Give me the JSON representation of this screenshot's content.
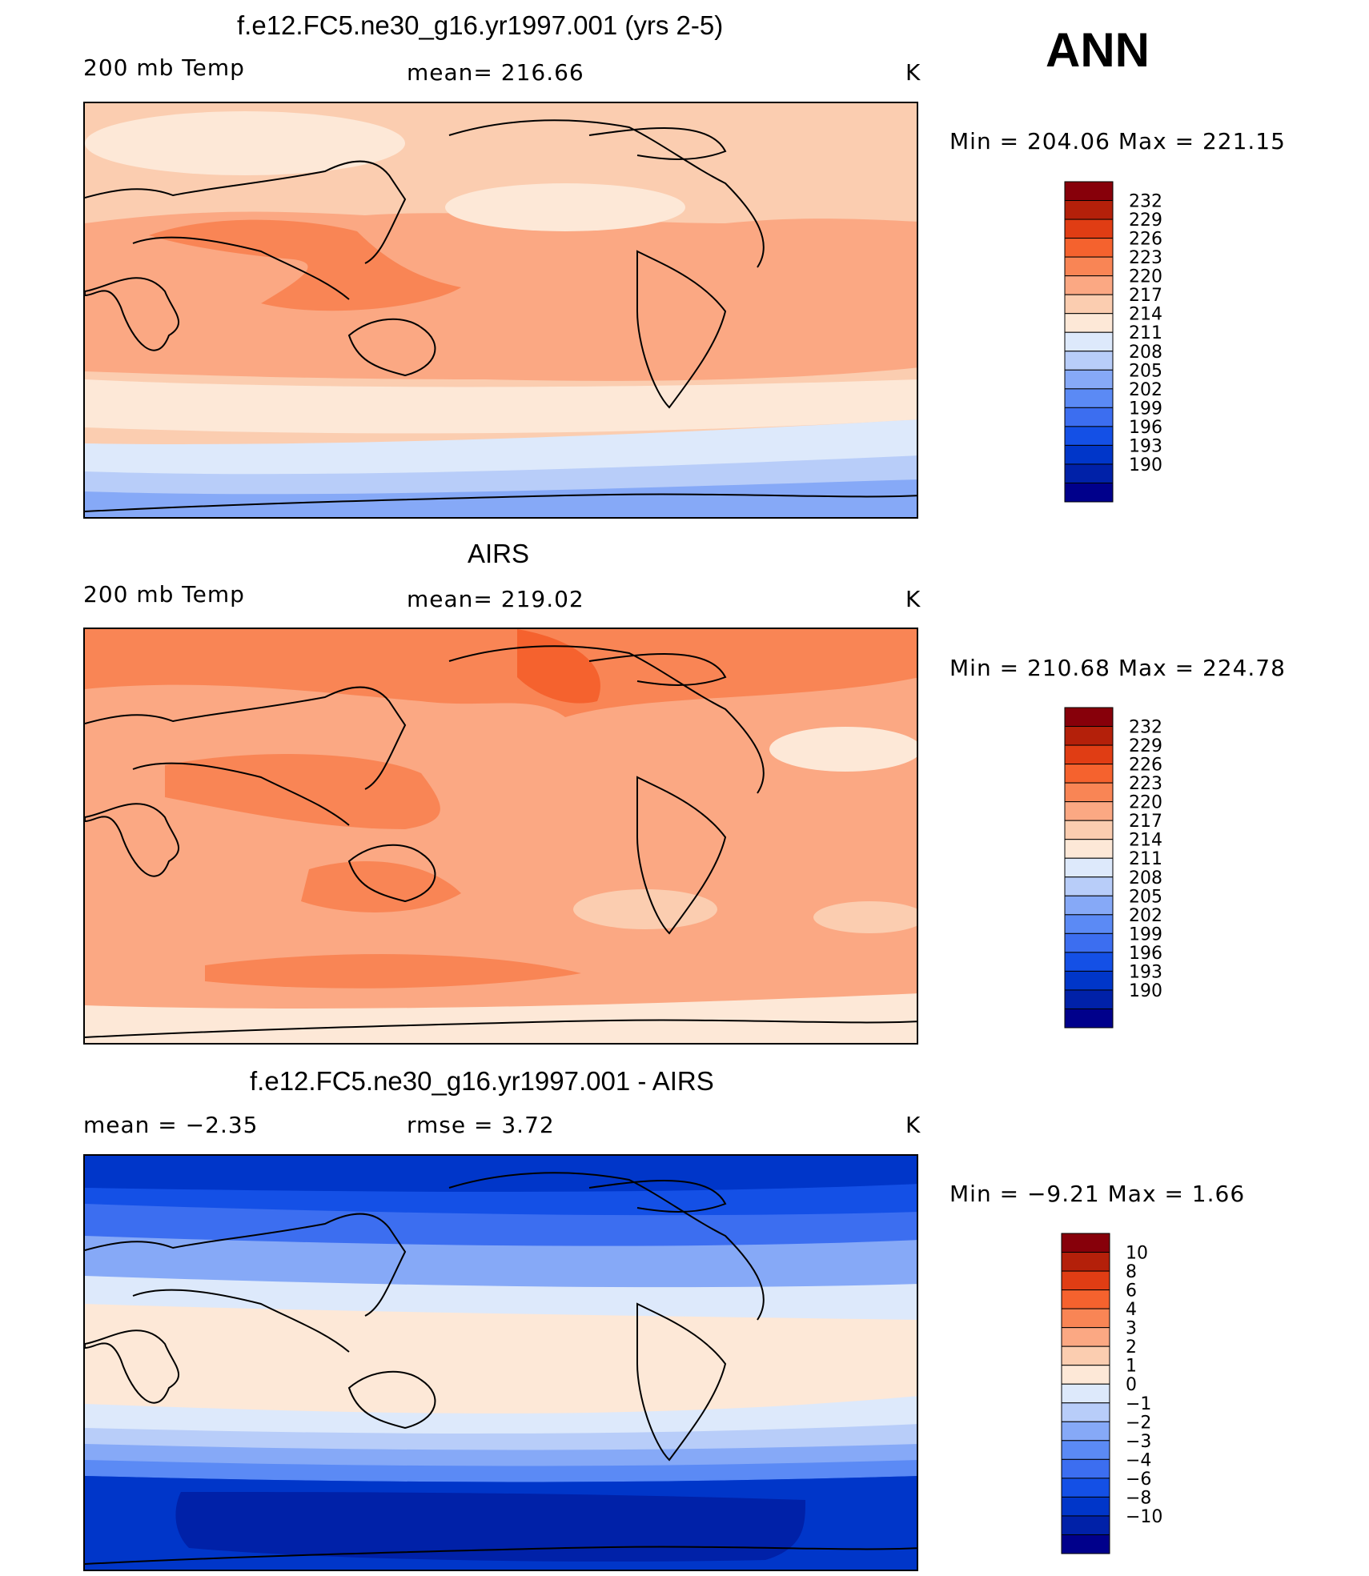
{
  "season": "ANN",
  "colors": {
    "temp_scale": [
      "#00008b",
      "#0021a8",
      "#0036c9",
      "#1450e6",
      "#3c6ef0",
      "#5b8af5",
      "#86a9f7",
      "#b8cdf9",
      "#dde9fb",
      "#fde8d7",
      "#fbcdb0",
      "#fba883",
      "#f98555",
      "#f5622e",
      "#e03d14",
      "#b4200a",
      "#87000a"
    ],
    "diff_scale": [
      "#00008b",
      "#0021a8",
      "#0036c9",
      "#1450e6",
      "#3c6ef0",
      "#5b8af5",
      "#86a9f7",
      "#b8cdf9",
      "#dde9fb",
      "#fde8d7",
      "#fbcdb0",
      "#fba883",
      "#f98555",
      "#f5622e",
      "#e03d14",
      "#b4200a",
      "#87000a"
    ]
  },
  "panels": [
    {
      "title": "f.e12.FC5.ne30_g16.yr1997.001 (yrs 2-5)",
      "left_label": "200 mb Temp",
      "center_label": "mean=  216.66",
      "units": "K",
      "minmax": "Min  =  204.06  Max  =  221.15",
      "colorbar_labels": [
        "232",
        "229",
        "226",
        "223",
        "220",
        "217",
        "214",
        "211",
        "208",
        "205",
        "202",
        "199",
        "196",
        "193",
        "190"
      ],
      "map": {
        "bands": [
          {
            "level": "217",
            "color": "#fbcdb0"
          },
          {
            "level": "220",
            "color": "#fba883"
          },
          {
            "level": "211",
            "color": "#fde8d7"
          },
          {
            "level": "208",
            "color": "#dde9fb"
          },
          {
            "level": "205",
            "color": "#b8cdf9"
          },
          {
            "level": "202",
            "color": "#86a9f7"
          }
        ]
      }
    },
    {
      "title": "AIRS",
      "left_label": "200 mb Temp",
      "center_label": "mean=  219.02",
      "units": "K",
      "minmax": "Min  =  210.68  Max  =  224.78",
      "colorbar_labels": [
        "232",
        "229",
        "226",
        "223",
        "220",
        "217",
        "214",
        "211",
        "208",
        "205",
        "202",
        "199",
        "196",
        "193",
        "190"
      ],
      "map": {
        "bands": [
          {
            "level": "223",
            "color": "#f98555"
          },
          {
            "level": "220",
            "color": "#fba883"
          },
          {
            "level": "217",
            "color": "#fbcdb0"
          },
          {
            "level": "211",
            "color": "#fde8d7"
          }
        ]
      }
    },
    {
      "title": "f.e12.FC5.ne30_g16.yr1997.001 - AIRS",
      "left_label": "mean  =    −2.35",
      "center_label": "rmse  =     3.72",
      "units": "K",
      "minmax": "Min  =    −9.21  Max  =      1.66",
      "colorbar_labels": [
        "10",
        "8",
        "6",
        "4",
        "3",
        "2",
        "1",
        "0",
        "−1",
        "−2",
        "−3",
        "−4",
        "−6",
        "−8",
        "−10"
      ],
      "map": {
        "bands": [
          {
            "level": "-4",
            "color": "#1450e6"
          },
          {
            "level": "-2",
            "color": "#86a9f7"
          },
          {
            "level": "-1",
            "color": "#dde9fb"
          },
          {
            "level": "0",
            "color": "#fde8d7"
          },
          {
            "level": "-6",
            "color": "#0036c9"
          },
          {
            "level": "-8",
            "color": "#0021a8"
          }
        ]
      }
    }
  ]
}
